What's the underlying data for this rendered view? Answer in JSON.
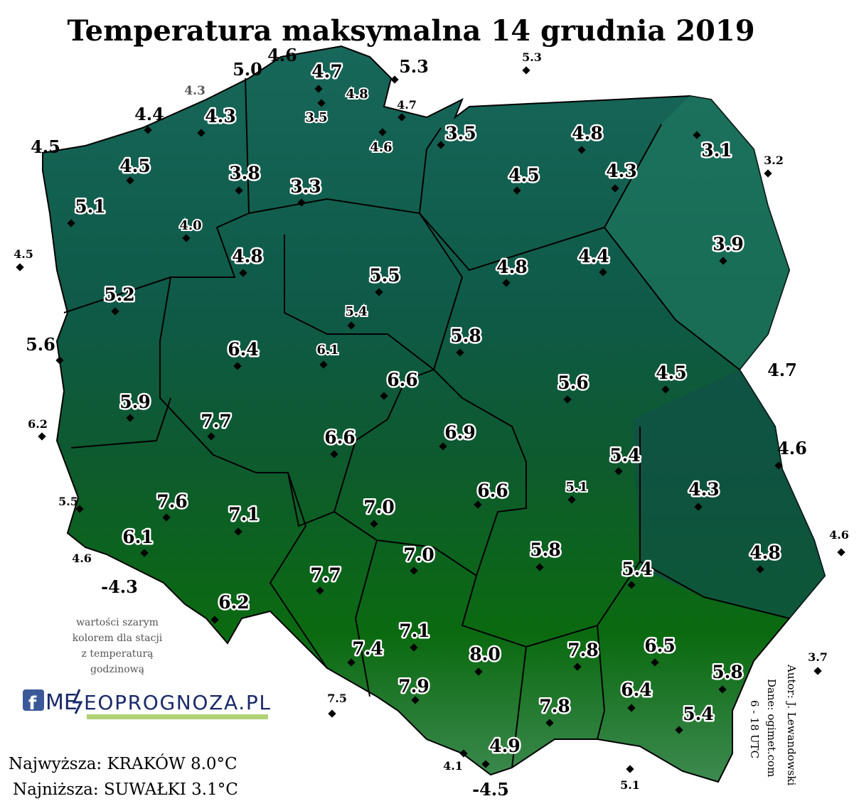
{
  "header": {
    "title": "Temperatura maksymalna 14 grudnia 2019"
  },
  "stations": [
    "4.6",
    "5.0",
    "4.7",
    "5.3",
    "5.3",
    "4.3",
    "4.8",
    "4.7",
    "4.4",
    "4.3",
    "3.5",
    "3.5",
    "4.8",
    "4.6",
    "3.1",
    "3.2",
    "4.5",
    "4.5",
    "3.8",
    "4.5",
    "4.3",
    "3.3",
    "5.1",
    "4.0",
    "3.9",
    "4.5",
    "4.8",
    "4.8",
    "4.4",
    "5.5",
    "5.2",
    "5.4",
    "5.8",
    "5.6",
    "6.4",
    "6.1",
    "4.7",
    "6.6",
    "5.6",
    "4.5",
    "5.9",
    "6.2",
    "7.7",
    "6.6",
    "6.9",
    "5.4",
    "4.6",
    "5.1",
    "6.6",
    "4.3",
    "5.5",
    "7.6",
    "7.1",
    "7.0",
    "6.1",
    "4.6",
    "5.8",
    "7.0",
    "4.8",
    "5.4",
    "4.6",
    "-4.3",
    "7.7",
    "6.2",
    "6.5",
    "7.1",
    "7.4",
    "8.0",
    "7.8",
    "3.7",
    "5.8",
    "7.9",
    "6.4",
    "7.5",
    "7.8",
    "5.4",
    "4.9",
    "4.1",
    "-4.5",
    "5.1"
  ],
  "note": [
    "wartości szarym",
    "kolorem dla stacji",
    "z temperaturą",
    "godzinową"
  ],
  "logo": {
    "left": "ME",
    "right": "EOPROGNOZA.PL"
  },
  "summary": {
    "max": "Najwyższa: KRAKÓW 8.0°C",
    "min": "Najniższa: SUWAŁKI 3.1°C"
  },
  "credits": [
    "Autor: J. Lewandowski",
    "Dane: ogimet.com",
    "6 - 18 UTC"
  ]
}
